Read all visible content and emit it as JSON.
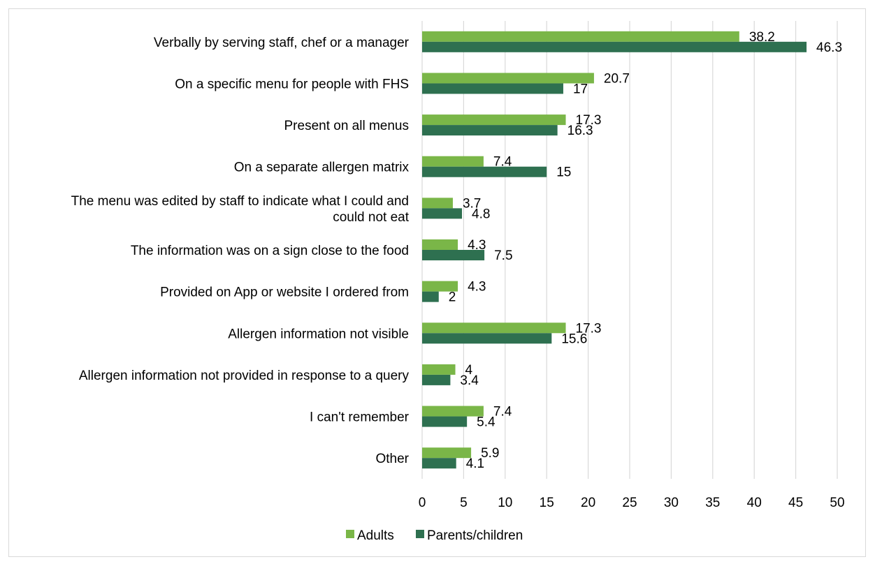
{
  "chart_data": {
    "type": "bar",
    "orientation": "horizontal",
    "title": "",
    "xlabel": "",
    "ylabel": "",
    "xlim": [
      0,
      50
    ],
    "xticks": [
      "0",
      "5",
      "10",
      "15",
      "20",
      "25",
      "30",
      "35",
      "40",
      "45",
      "50"
    ],
    "grid": true,
    "legend_position": "bottom",
    "categories": [
      [
        "Verbally by serving staff, chef or a manager"
      ],
      [
        "On a specific menu for people with FHS"
      ],
      [
        "Present on all menus"
      ],
      [
        "On a separate allergen matrix"
      ],
      [
        "The menu was edited by staff to indicate what I could and",
        "could not eat"
      ],
      [
        "The information was on a sign close to the food"
      ],
      [
        "Provided on App or website I ordered from"
      ],
      [
        "Allergen information not visible"
      ],
      [
        "Allergen information not provided in response to a query"
      ],
      [
        "I can't remember"
      ],
      [
        "Other"
      ]
    ],
    "series": [
      {
        "name": "Adults",
        "color": "#7ab648",
        "values": [
          38.2,
          20.7,
          17.3,
          7.4,
          3.7,
          4.3,
          4.3,
          17.3,
          4,
          7.4,
          5.9
        ],
        "labels": [
          "38.2",
          "20.7",
          "17.3",
          "7.4",
          "3.7",
          "4.3",
          "4.3",
          "17.3",
          "4",
          "7.4",
          "5.9"
        ]
      },
      {
        "name": "Parents/children",
        "color": "#2e7050",
        "values": [
          46.3,
          17,
          16.3,
          15,
          4.8,
          7.5,
          2,
          15.6,
          3.4,
          5.4,
          4.1
        ],
        "labels": [
          "46.3",
          "17",
          "16.3",
          "15",
          "4.8",
          "7.5",
          "2",
          "15.6",
          "3.4",
          "5.4",
          "4.1"
        ]
      }
    ]
  }
}
